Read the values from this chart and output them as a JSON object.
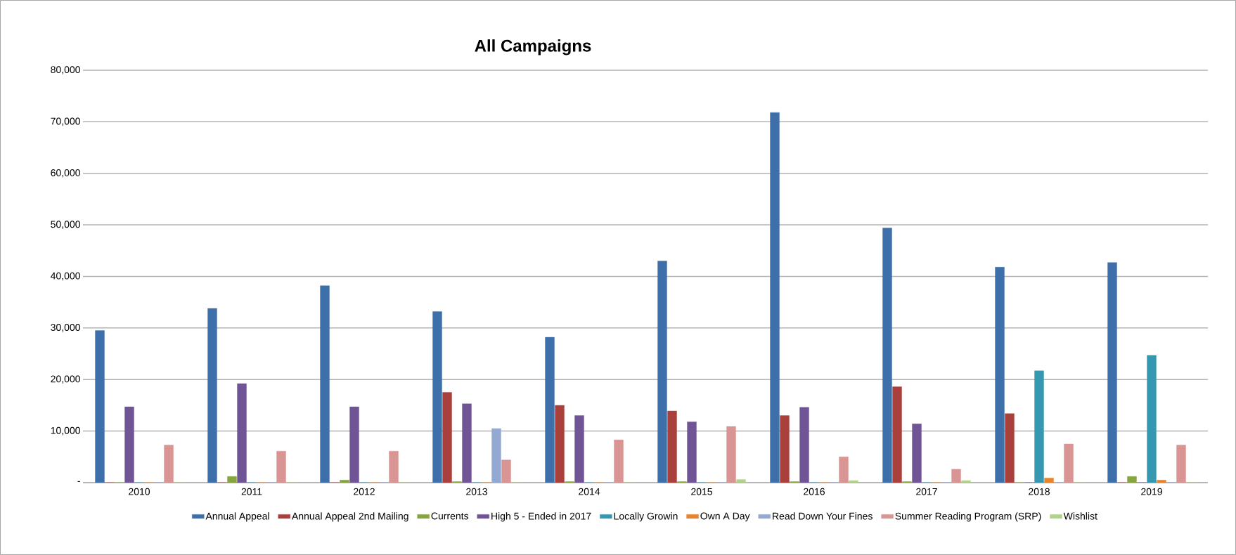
{
  "chart_data": {
    "type": "bar",
    "title": "All Campaigns",
    "categories": [
      "2010",
      "2011",
      "2012",
      "2013",
      "2014",
      "2015",
      "2016",
      "2017",
      "2018",
      "2019"
    ],
    "series": [
      {
        "name": "Annual Appeal",
        "color": "#3e6fa8",
        "values": [
          29500,
          33800,
          38200,
          33200,
          28200,
          43000,
          71800,
          49400,
          41800,
          42700
        ]
      },
      {
        "name": "Annual Appeal 2nd Mailing",
        "color": "#a9403c",
        "values": [
          0,
          0,
          0,
          17500,
          15000,
          13900,
          13000,
          18600,
          13400,
          0
        ]
      },
      {
        "name": "Currents",
        "color": "#86a43f",
        "values": [
          0,
          1200,
          500,
          200,
          200,
          200,
          200,
          200,
          0,
          1200
        ]
      },
      {
        "name": "High 5 - Ended in 2017",
        "color": "#6f5595",
        "values": [
          14700,
          19200,
          14700,
          15300,
          13000,
          11800,
          14600,
          11400,
          0,
          0
        ]
      },
      {
        "name": "Locally Growin",
        "color": "#3598b0",
        "values": [
          0,
          0,
          0,
          0,
          0,
          0,
          0,
          0,
          21700,
          24700
        ]
      },
      {
        "name": "Own A Day",
        "color": "#e8842e",
        "values": [
          0,
          0,
          0,
          0,
          0,
          0,
          0,
          0,
          900,
          500
        ]
      },
      {
        "name": "Read Down Your Fines",
        "color": "#93a9d2",
        "values": [
          0,
          0,
          0,
          10500,
          0,
          0,
          0,
          0,
          0,
          0
        ]
      },
      {
        "name": "Summer Reading Program (SRP)",
        "color": "#d89593",
        "values": [
          7300,
          6100,
          6100,
          4400,
          8300,
          10900,
          5000,
          2600,
          7500,
          7300
        ]
      },
      {
        "name": "Wishlist",
        "color": "#b3d18c",
        "values": [
          0,
          0,
          0,
          0,
          0,
          600,
          400,
          400,
          0,
          0
        ]
      }
    ],
    "ylim": [
      0,
      80000
    ],
    "yticks": [
      {
        "value": 0,
        "label": "-"
      },
      {
        "value": 10000,
        "label": "10,000"
      },
      {
        "value": 20000,
        "label": "20,000"
      },
      {
        "value": 30000,
        "label": "30,000"
      },
      {
        "value": 40000,
        "label": "40,000"
      },
      {
        "value": 50000,
        "label": "50,000"
      },
      {
        "value": 60000,
        "label": "60,000"
      },
      {
        "value": 70000,
        "label": "70,000"
      },
      {
        "value": 80000,
        "label": "80,000"
      }
    ],
    "grid": "y",
    "legend": "bottom"
  }
}
